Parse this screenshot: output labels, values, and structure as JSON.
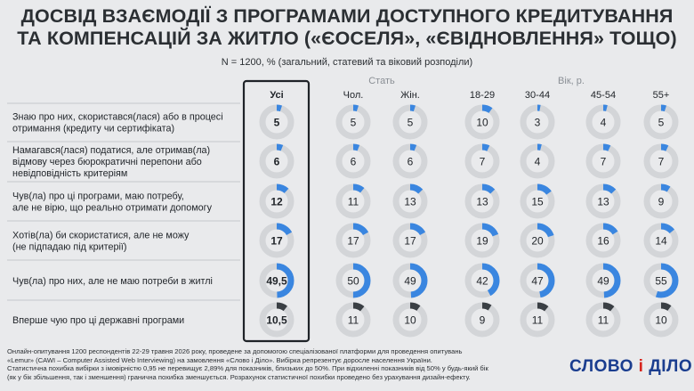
{
  "header": {
    "title_line1": "ДОСВІД ВЗАЄМОДІЇ З ПРОГРАМАМИ ДОСТУПНОГО КРЕДИТУВАННЯ",
    "title_line2": "ТА КОМПЕНСАЦІЙ ЗА ЖИТЛО («ЄОСЕЛЯ», «ЄВІДНОВЛЕННЯ» ТОЩО)",
    "subtitle": "N = 1200, % (загальний, статевий та віковий розподіли)"
  },
  "chart_data": {
    "type": "table",
    "groups": [
      {
        "label": "",
        "columns": [
          "Усі"
        ]
      },
      {
        "label": "Стать",
        "columns": [
          "Чол.",
          "Жін."
        ]
      },
      {
        "label": "Вік, р.",
        "columns": [
          "18-29",
          "30-44",
          "45-54",
          "55+"
        ]
      }
    ],
    "columns": [
      "Усі",
      "Чол.",
      "Жін.",
      "18-29",
      "30-44",
      "45-54",
      "55+"
    ],
    "rows": [
      {
        "label": [
          "Знаю про них, скористався(лася) або в процесі",
          "отримання (кредиту чи сертифіката)"
        ],
        "values": [
          "5",
          "5",
          "5",
          "10",
          "3",
          "4",
          "5"
        ],
        "numeric": [
          5,
          5,
          5,
          10,
          3,
          4,
          5
        ],
        "color": "#3a86e0"
      },
      {
        "label": [
          "Намагався(лася) податися, але отримав(ла)",
          "відмову через бюрократичні перепони або",
          "невідповідність критеріям"
        ],
        "values": [
          "6",
          "6",
          "6",
          "7",
          "4",
          "7",
          "7"
        ],
        "numeric": [
          6,
          6,
          6,
          7,
          4,
          7,
          7
        ],
        "color": "#3a86e0"
      },
      {
        "label": [
          "Чув(ла) про ці програми, маю потребу,",
          "але не вірю, що реально отримати допомогу"
        ],
        "values": [
          "12",
          "11",
          "13",
          "13",
          "15",
          "13",
          "9"
        ],
        "numeric": [
          12,
          11,
          13,
          13,
          15,
          13,
          9
        ],
        "color": "#3a86e0"
      },
      {
        "label": [
          "Хотів(ла) би скористатися, але не можу",
          "(не підпадаю під критерії)"
        ],
        "values": [
          "17",
          "17",
          "17",
          "19",
          "20",
          "16",
          "14"
        ],
        "numeric": [
          17,
          17,
          17,
          19,
          20,
          16,
          14
        ],
        "color": "#3a86e0"
      },
      {
        "label": [
          "Чув(ла) про них, але не маю потреби в житлі"
        ],
        "values": [
          "49,5",
          "50",
          "49",
          "42",
          "47",
          "49",
          "55"
        ],
        "numeric": [
          49.5,
          50,
          49,
          42,
          47,
          49,
          55
        ],
        "color": "#3a86e0"
      },
      {
        "label": [
          "Вперше чую про ці державні програми"
        ],
        "values": [
          "10,5",
          "11",
          "10",
          "9",
          "11",
          "11",
          "10"
        ],
        "numeric": [
          10.5,
          11,
          10,
          9,
          11,
          11,
          10
        ],
        "color": "#3a3f44"
      }
    ],
    "highlight_column": "Усі",
    "ring_track_color": "#d3d5d8"
  },
  "footer": {
    "lines": [
      "Онлайн-опитування 1200 респондентів 22-29 травня 2026 року, проведене за допомогою спеціалізованої платформи для проведення опитувань",
      "«Lemur» (CAWI – Computer Assisted Web Interviewing) на замовлення «Слово і Діло». Вибірка репрезентує доросле населення України.",
      "Статистична похибка вибірки з імовірністю 0,95 не перевищує 2,89% для показників, близьких до 50%. При відхиленні показників від 50% у будь-який бік",
      "(як у бік збільшення, так і зменшення) гранична похибка зменшується. Розрахунок статистичної похибки проведено без урахування дизайн-ефекту."
    ]
  },
  "logo": {
    "part1": "СЛОВО",
    "amp": "і",
    "part2": "ДІЛО"
  }
}
